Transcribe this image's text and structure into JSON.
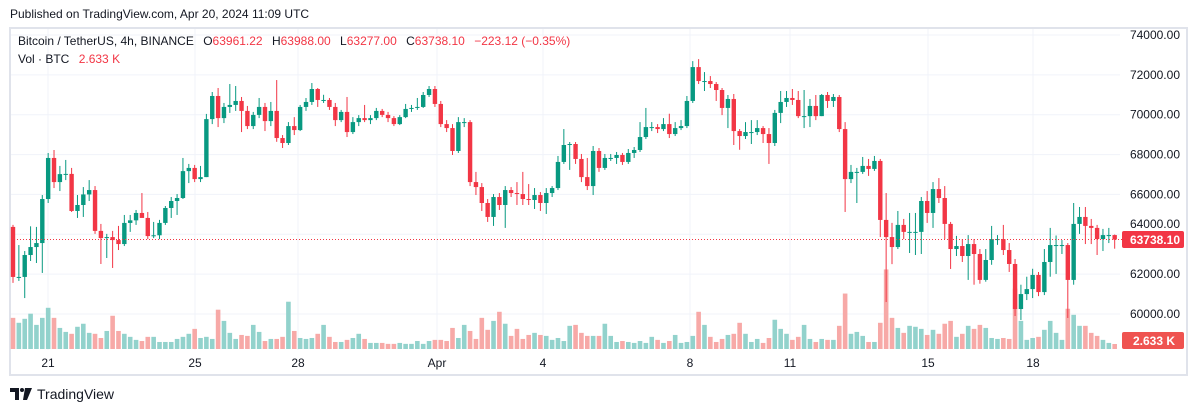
{
  "header": {
    "published": "Published on TradingView.com, Apr 20, 2024 11:09 UTC"
  },
  "legend": {
    "symbol": "Bitcoin / TetherUS, 4h, BINANCE",
    "o_label": "O",
    "o_value": "63961.22",
    "h_label": "H",
    "h_value": "63988.00",
    "l_label": "L",
    "l_value": "63277.00",
    "c_label": "C",
    "c_value": "63738.10",
    "change": "−223.12 (−0.35%)",
    "vol_label": "Vol · BTC",
    "vol_value": "2.633 K"
  },
  "price_axis": {
    "labels": [
      "74000.00",
      "72000.00",
      "70000.00",
      "68000.00",
      "66000.00",
      "64000.00",
      "62000.00",
      "60000.00"
    ],
    "last_price_label": "63738.10",
    "last_volume_label": "2.633 K"
  },
  "time_axis": {
    "labels": [
      "21",
      "25",
      "28",
      "Apr",
      "4",
      "8",
      "11",
      "15",
      "18"
    ]
  },
  "brand": {
    "name": "TradingView"
  },
  "colors": {
    "up": "#089981",
    "down": "#f23645",
    "volume_up": "#92d2cc",
    "volume_down": "#f7a9a7",
    "grid": "#f0f3fa",
    "frame": "#e0e3eb"
  },
  "chart_data": {
    "type": "candlestick",
    "title": "Bitcoin / TetherUS, 4h, BINANCE",
    "ylim": [
      60000,
      74000
    ],
    "y_ticks": [
      60000,
      62000,
      64000,
      66000,
      68000,
      70000,
      72000,
      74000
    ],
    "x_tick_labels": [
      "21",
      "25",
      "28",
      "Apr",
      "4",
      "8",
      "11",
      "15",
      "18"
    ],
    "grid": true,
    "last_price": 63738.1,
    "volume_unit": "K BTC",
    "candle_fields": [
      "open",
      "high",
      "low",
      "close",
      "volume"
    ],
    "candles": [
      [
        64370,
        64470,
        61560,
        61860,
        16.4
      ],
      [
        61860,
        63460,
        61660,
        61860,
        13.8
      ],
      [
        61860,
        63160,
        60800,
        62960,
        15.9
      ],
      [
        62960,
        64400,
        62660,
        63360,
        18.6
      ],
      [
        63360,
        64370,
        62560,
        63560,
        12.7
      ],
      [
        63560,
        65970,
        62060,
        65770,
        16.4
      ],
      [
        65770,
        68080,
        65570,
        67830,
        21.7
      ],
      [
        67830,
        68230,
        66320,
        66620,
        16.4
      ],
      [
        66620,
        67430,
        66170,
        67020,
        11.1
      ],
      [
        67020,
        67730,
        66720,
        67030,
        9.0
      ],
      [
        67030,
        67330,
        65120,
        65170,
        8.0
      ],
      [
        65170,
        65970,
        64820,
        65470,
        11.7
      ],
      [
        65470,
        66370,
        64870,
        66000,
        13.3
      ],
      [
        66000,
        66720,
        65670,
        66220,
        8.5
      ],
      [
        66220,
        66420,
        64020,
        64170,
        8.0
      ],
      [
        64170,
        64520,
        62510,
        63810,
        5.8
      ],
      [
        63810,
        64020,
        62810,
        63860,
        9.5
      ],
      [
        63860,
        64170,
        62310,
        63710,
        17.5
      ],
      [
        63710,
        64420,
        63210,
        63510,
        9.5
      ],
      [
        63510,
        64970,
        63410,
        64570,
        8.0
      ],
      [
        64570,
        64970,
        64120,
        64700,
        6.4
      ],
      [
        64700,
        65220,
        64470,
        65070,
        4.8
      ],
      [
        65070,
        66070,
        64920,
        64820,
        4.2
      ],
      [
        64820,
        65120,
        63760,
        63910,
        6.4
      ],
      [
        63910,
        64620,
        63810,
        63950,
        6.4
      ],
      [
        63950,
        64720,
        63760,
        64570,
        3.7
      ],
      [
        64570,
        65420,
        64470,
        65320,
        3.7
      ],
      [
        65320,
        65870,
        64820,
        65670,
        3.7
      ],
      [
        65670,
        66020,
        64970,
        65820,
        5.3
      ],
      [
        65820,
        67830,
        65770,
        67170,
        6.4
      ],
      [
        67170,
        67530,
        66570,
        67330,
        8.0
      ],
      [
        67330,
        67480,
        66620,
        66770,
        10.6
      ],
      [
        66770,
        67430,
        66620,
        66870,
        5.8
      ],
      [
        66870,
        70040,
        66870,
        69780,
        6.4
      ],
      [
        69780,
        71140,
        69530,
        70940,
        5.3
      ],
      [
        70940,
        71340,
        69380,
        69830,
        20.7
      ],
      [
        69830,
        70590,
        69580,
        70390,
        14.8
      ],
      [
        70390,
        71540,
        70090,
        70490,
        8.5
      ],
      [
        70490,
        71440,
        70190,
        70690,
        5.3
      ],
      [
        70690,
        70890,
        69130,
        70190,
        7.4
      ],
      [
        70190,
        70440,
        69280,
        69430,
        6.9
      ],
      [
        69430,
        70140,
        69280,
        69990,
        12.7
      ],
      [
        69990,
        70840,
        69830,
        70390,
        9.0
      ],
      [
        70390,
        70590,
        69180,
        69680,
        4.2
      ],
      [
        69680,
        70640,
        69430,
        70190,
        5.3
      ],
      [
        70190,
        71740,
        68640,
        68830,
        5.3
      ],
      [
        68830,
        68980,
        68330,
        68580,
        6.4
      ],
      [
        68580,
        69630,
        68480,
        69430,
        24.9
      ],
      [
        69430,
        69880,
        68980,
        69230,
        9.5
      ],
      [
        69230,
        70490,
        69180,
        70390,
        5.8
      ],
      [
        70390,
        70840,
        70190,
        70640,
        5.3
      ],
      [
        70640,
        71590,
        70490,
        71290,
        5.8
      ],
      [
        71290,
        71340,
        70390,
        70740,
        8.0
      ],
      [
        70740,
        71000,
        70590,
        70740,
        12.7
      ],
      [
        70740,
        70840,
        70240,
        70390,
        6.4
      ],
      [
        70390,
        70590,
        69430,
        69730,
        3.7
      ],
      [
        69730,
        70240,
        69630,
        70140,
        3.7
      ],
      [
        70140,
        70890,
        68880,
        69130,
        4.8
      ],
      [
        69130,
        69880,
        69030,
        69630,
        5.8
      ],
      [
        69630,
        69980,
        69430,
        69830,
        8.0
      ],
      [
        69830,
        70490,
        69630,
        69730,
        5.3
      ],
      [
        69730,
        69980,
        69530,
        69830,
        3.2
      ],
      [
        69830,
        70340,
        69730,
        70190,
        3.2
      ],
      [
        70190,
        70290,
        69880,
        69990,
        3.2
      ],
      [
        69990,
        70140,
        69630,
        69830,
        2.7
      ],
      [
        69830,
        69930,
        69430,
        69530,
        2.7
      ],
      [
        69530,
        69980,
        69480,
        69880,
        3.2
      ],
      [
        69880,
        70540,
        69830,
        70290,
        2.7
      ],
      [
        70290,
        70490,
        70140,
        70340,
        2.7
      ],
      [
        70340,
        70840,
        70240,
        70390,
        4.2
      ],
      [
        70390,
        71140,
        70340,
        70990,
        2.7
      ],
      [
        70990,
        71440,
        70890,
        71290,
        4.2
      ],
      [
        71290,
        71440,
        70390,
        70540,
        4.8
      ],
      [
        70540,
        70690,
        69380,
        69530,
        4.8
      ],
      [
        69530,
        69730,
        69130,
        69330,
        4.2
      ],
      [
        69330,
        69530,
        67980,
        68180,
        11.1
      ],
      [
        68180,
        69880,
        68080,
        69630,
        5.8
      ],
      [
        69630,
        69830,
        69380,
        69630,
        12.7
      ],
      [
        69630,
        69730,
        66420,
        66620,
        9.5
      ],
      [
        66620,
        67130,
        65970,
        66370,
        5.3
      ],
      [
        66370,
        66570,
        65170,
        65570,
        16.4
      ],
      [
        65570,
        65770,
        64620,
        64870,
        10.1
      ],
      [
        64870,
        66020,
        64420,
        65870,
        14.8
      ],
      [
        65870,
        66070,
        65220,
        65470,
        19.6
      ],
      [
        65470,
        66420,
        64320,
        66220,
        13.3
      ],
      [
        66220,
        66370,
        65870,
        66070,
        6.9
      ],
      [
        66070,
        66620,
        65470,
        66020,
        10.6
      ],
      [
        66020,
        67130,
        65470,
        65770,
        5.3
      ],
      [
        65770,
        66520,
        65470,
        65720,
        7.4
      ],
      [
        65720,
        66320,
        65270,
        65970,
        8.5
      ],
      [
        65970,
        66120,
        65170,
        65570,
        7.4
      ],
      [
        65570,
        66320,
        65020,
        66070,
        6.9
      ],
      [
        66070,
        66420,
        65870,
        66320,
        4.8
      ],
      [
        66320,
        67930,
        66220,
        67630,
        5.8
      ],
      [
        67630,
        69280,
        67530,
        68480,
        4.2
      ],
      [
        68480,
        68630,
        67230,
        68530,
        12.2
      ],
      [
        68530,
        68630,
        67530,
        67780,
        12.7
      ],
      [
        67780,
        68030,
        66620,
        66870,
        8.5
      ],
      [
        66870,
        67830,
        66220,
        66420,
        6.9
      ],
      [
        66420,
        68430,
        65970,
        68180,
        6.9
      ],
      [
        68180,
        68330,
        67130,
        67330,
        6.9
      ],
      [
        67330,
        68030,
        67230,
        67830,
        13.3
      ],
      [
        67830,
        68030,
        67680,
        67830,
        6.9
      ],
      [
        67830,
        68130,
        67530,
        67980,
        3.7
      ],
      [
        67980,
        68080,
        67480,
        67630,
        4.2
      ],
      [
        67630,
        68280,
        67530,
        68080,
        3.7
      ],
      [
        68080,
        68380,
        67830,
        68230,
        3.2
      ],
      [
        68230,
        69630,
        68130,
        68880,
        4.2
      ],
      [
        68880,
        70340,
        68780,
        69380,
        3.2
      ],
      [
        69380,
        69630,
        69180,
        69380,
        6.4
      ],
      [
        69380,
        69530,
        69080,
        69280,
        4.8
      ],
      [
        69280,
        69830,
        69180,
        69530,
        3.2
      ],
      [
        69530,
        70050,
        68830,
        69030,
        4.2
      ],
      [
        69030,
        69630,
        68930,
        69330,
        7.4
      ],
      [
        69330,
        69730,
        69230,
        69430,
        3.2
      ],
      [
        69430,
        70940,
        69330,
        70690,
        3.7
      ],
      [
        70690,
        72690,
        70590,
        72390,
        6.9
      ],
      [
        72390,
        72790,
        71540,
        71690,
        19.6
      ],
      [
        71690,
        72140,
        71190,
        71690,
        12.7
      ],
      [
        71690,
        71940,
        71340,
        71540,
        6.4
      ],
      [
        71540,
        71640,
        70690,
        71240,
        3.7
      ],
      [
        71240,
        71340,
        69980,
        70340,
        5.3
      ],
      [
        70340,
        70990,
        69330,
        70790,
        7.4
      ],
      [
        70790,
        71040,
        68480,
        69180,
        8.0
      ],
      [
        69180,
        69280,
        68240,
        68930,
        13.8
      ],
      [
        68930,
        69630,
        68780,
        69130,
        8.0
      ],
      [
        69130,
        69730,
        68530,
        69130,
        3.7
      ],
      [
        69130,
        69730,
        68980,
        69330,
        5.3
      ],
      [
        69330,
        69430,
        68580,
        69030,
        3.2
      ],
      [
        69030,
        69330,
        67530,
        68580,
        5.8
      ],
      [
        68580,
        70240,
        68430,
        70090,
        15.4
      ],
      [
        70090,
        71190,
        69580,
        70640,
        10.6
      ],
      [
        70640,
        71190,
        70390,
        70840,
        8.0
      ],
      [
        70840,
        71290,
        70490,
        70740,
        4.8
      ],
      [
        70740,
        71190,
        69830,
        69930,
        6.4
      ],
      [
        69930,
        71240,
        69330,
        69930,
        12.7
      ],
      [
        69930,
        70790,
        69380,
        70440,
        5.3
      ],
      [
        70440,
        70990,
        69730,
        69930,
        3.7
      ],
      [
        69930,
        71040,
        69930,
        70990,
        5.3
      ],
      [
        70990,
        71140,
        70340,
        70690,
        4.8
      ],
      [
        70690,
        71040,
        70390,
        70890,
        4.8
      ],
      [
        70890,
        70990,
        69130,
        69280,
        12.2
      ],
      [
        69280,
        69630,
        65120,
        66770,
        29.2
      ],
      [
        66770,
        67480,
        66570,
        67130,
        8.0
      ],
      [
        67130,
        67330,
        65570,
        67130,
        9.0
      ],
      [
        67130,
        67880,
        67030,
        67430,
        6.9
      ],
      [
        67430,
        67780,
        66930,
        67280,
        3.7
      ],
      [
        67280,
        67930,
        67180,
        67680,
        3.7
      ],
      [
        67680,
        67780,
        63860,
        64720,
        13.8
      ],
      [
        64720,
        66070,
        60600,
        63860,
        41.9
      ],
      [
        63860,
        64570,
        62500,
        63360,
        16.4
      ],
      [
        63360,
        65170,
        63260,
        64470,
        11.1
      ],
      [
        64470,
        64770,
        63760,
        64120,
        8.5
      ],
      [
        64120,
        65070,
        63060,
        64120,
        12.2
      ],
      [
        64120,
        65070,
        62960,
        64120,
        11.7
      ],
      [
        64120,
        65870,
        63010,
        65670,
        10.6
      ],
      [
        65670,
        66170,
        64570,
        65070,
        7.4
      ],
      [
        65070,
        66620,
        64320,
        66270,
        10.1
      ],
      [
        66270,
        66820,
        65570,
        65820,
        8.0
      ],
      [
        65820,
        66420,
        63760,
        64520,
        13.3
      ],
      [
        64520,
        64620,
        62260,
        63260,
        14.8
      ],
      [
        63260,
        63920,
        62910,
        63410,
        6.4
      ],
      [
        63410,
        63760,
        62610,
        62910,
        8.0
      ],
      [
        62910,
        63960,
        61710,
        63510,
        12.2
      ],
      [
        63510,
        63760,
        61470,
        63010,
        10.6
      ],
      [
        63010,
        63260,
        61520,
        61710,
        12.7
      ],
      [
        61710,
        63260,
        61620,
        62710,
        11.1
      ],
      [
        62710,
        64420,
        62470,
        63760,
        5.8
      ],
      [
        63760,
        63960,
        63470,
        63760,
        5.3
      ],
      [
        63760,
        64470,
        62960,
        63210,
        5.8
      ],
      [
        63210,
        63560,
        62110,
        62510,
        5.3
      ],
      [
        62510,
        62760,
        59900,
        60250,
        31.8
      ],
      [
        60250,
        61470,
        59700,
        61000,
        14.8
      ],
      [
        61000,
        61870,
        60700,
        61250,
        4.8
      ],
      [
        61250,
        62270,
        60800,
        61960,
        5.8
      ],
      [
        61960,
        62110,
        60900,
        61100,
        6.4
      ],
      [
        61100,
        63260,
        60950,
        62610,
        10.1
      ],
      [
        62610,
        64320,
        61870,
        63460,
        14.8
      ],
      [
        63460,
        63940,
        62010,
        63460,
        8.5
      ],
      [
        63460,
        63710,
        63010,
        63460,
        4.8
      ],
      [
        63460,
        63560,
        59800,
        61710,
        21.2
      ],
      [
        61710,
        65570,
        61470,
        64520,
        18.0
      ],
      [
        64520,
        65370,
        64020,
        64870,
        12.2
      ],
      [
        64870,
        65370,
        63510,
        64420,
        12.2
      ],
      [
        64420,
        64770,
        63510,
        64320,
        8.5
      ],
      [
        64320,
        64470,
        62960,
        63760,
        6.9
      ],
      [
        63760,
        64270,
        63160,
        63960,
        4.8
      ],
      [
        63960,
        64320,
        63560,
        63960,
        3.2
      ],
      [
        63961.22,
        63988.0,
        63277.0,
        63738.1,
        2.633
      ]
    ]
  }
}
